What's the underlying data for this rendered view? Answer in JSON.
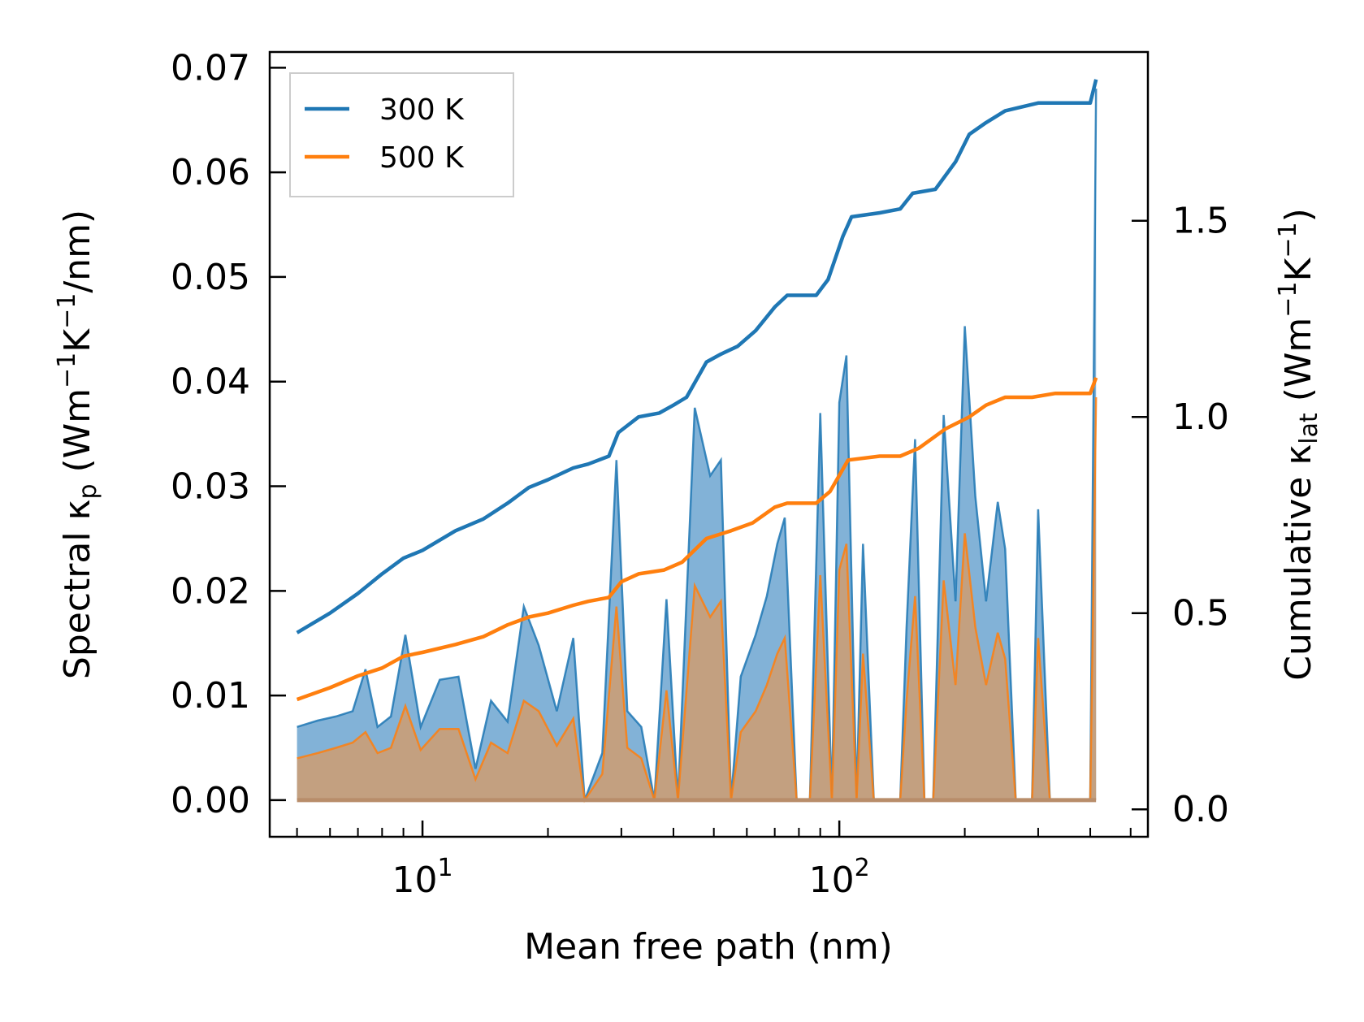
{
  "chart_data": {
    "type": "line",
    "xscale": "log",
    "xlabel": "Mean free path (nm)",
    "ylabel_left": "Spectral κp (Wm⁻¹K⁻¹/nm)",
    "ylabel_right": "Cumulative κlat (Wm⁻¹K⁻¹)",
    "ylabel_left_parts": {
      "prefix": "Spectral κ",
      "sub": "p",
      "mid": " (Wm",
      "sup1": "−1",
      "k": "K",
      "sup2": "−1",
      "suffix": "/nm)"
    },
    "ylabel_right_parts": {
      "prefix": "Cumulative κ",
      "sub": "lat",
      "mid": " (Wm",
      "sup1": "−1",
      "k": "K",
      "sup2": "−1",
      "suffix": ")"
    },
    "xlim": [
      4.3,
      550
    ],
    "ylim_left": [
      -0.0035,
      0.0715
    ],
    "ylim_right": [
      -0.07,
      1.93
    ],
    "xticks": [
      {
        "value": 10,
        "base": "10",
        "exp": "1"
      },
      {
        "value": 100,
        "base": "10",
        "exp": "2"
      }
    ],
    "yticks_left": [
      {
        "value": 0.0,
        "label": "0.00"
      },
      {
        "value": 0.01,
        "label": "0.01"
      },
      {
        "value": 0.02,
        "label": "0.02"
      },
      {
        "value": 0.03,
        "label": "0.03"
      },
      {
        "value": 0.04,
        "label": "0.04"
      },
      {
        "value": 0.05,
        "label": "0.05"
      },
      {
        "value": 0.06,
        "label": "0.06"
      },
      {
        "value": 0.07,
        "label": "0.07"
      }
    ],
    "yticks_right": [
      {
        "value": 0.0,
        "label": "0.0"
      },
      {
        "value": 0.5,
        "label": "0.5"
      },
      {
        "value": 1.0,
        "label": "1.0"
      },
      {
        "value": 1.5,
        "label": "1.5"
      }
    ],
    "legend": {
      "location": "upper-left",
      "entries": [
        {
          "label": "300 K",
          "color": "#1f77b4"
        },
        {
          "label": "500 K",
          "color": "#ff7f0e"
        }
      ]
    },
    "colors": {
      "t300": "#1f77b4",
      "t500": "#ff7f0e",
      "fill300": "#2e7ebc",
      "fill500": "#d89a63"
    },
    "spectral": {
      "300 K": [
        [
          5,
          0.007
        ],
        [
          5.6,
          0.0076
        ],
        [
          6.2,
          0.008
        ],
        [
          6.8,
          0.0085
        ],
        [
          7.3,
          0.0125
        ],
        [
          7.8,
          0.007
        ],
        [
          8.4,
          0.008
        ],
        [
          9.1,
          0.0158
        ],
        [
          9.9,
          0.007
        ],
        [
          11,
          0.0115
        ],
        [
          12.2,
          0.0118
        ],
        [
          13.4,
          0.003
        ],
        [
          14.6,
          0.0095
        ],
        [
          16,
          0.0075
        ],
        [
          17.5,
          0.0185
        ],
        [
          19,
          0.0148
        ],
        [
          21,
          0.0085
        ],
        [
          23,
          0.0155
        ],
        [
          24.5,
          0.0
        ],
        [
          27,
          0.0045
        ],
        [
          29.2,
          0.0325
        ],
        [
          31,
          0.0085
        ],
        [
          33.5,
          0.007
        ],
        [
          36,
          0.0
        ],
        [
          38.5,
          0.0192
        ],
        [
          41,
          0.0
        ],
        [
          45,
          0.0375
        ],
        [
          49,
          0.031
        ],
        [
          52,
          0.0325
        ],
        [
          55,
          0.0
        ],
        [
          58,
          0.0118
        ],
        [
          63,
          0.0158
        ],
        [
          67,
          0.0195
        ],
        [
          71,
          0.0245
        ],
        [
          74,
          0.027
        ],
        [
          79,
          0.0
        ],
        [
          85,
          0.0
        ],
        [
          90,
          0.037
        ],
        [
          96,
          0.0
        ],
        [
          100,
          0.038
        ],
        [
          104,
          0.0425
        ],
        [
          110,
          0.0
        ],
        [
          114,
          0.0245
        ],
        [
          121,
          0.0
        ],
        [
          140,
          0.0
        ],
        [
          145,
          0.0165
        ],
        [
          152,
          0.0345
        ],
        [
          160,
          0.0
        ],
        [
          168,
          0.0
        ],
        [
          178,
          0.0368
        ],
        [
          190,
          0.019
        ],
        [
          200,
          0.0453
        ],
        [
          212,
          0.029
        ],
        [
          225,
          0.019
        ],
        [
          240,
          0.0285
        ],
        [
          250,
          0.024
        ],
        [
          265,
          0.0
        ],
        [
          290,
          0.0
        ],
        [
          300,
          0.0278
        ],
        [
          320,
          0.0
        ],
        [
          400,
          0.0
        ],
        [
          413,
          0.068
        ]
      ],
      "500 K": [
        [
          5,
          0.004
        ],
        [
          5.6,
          0.0045
        ],
        [
          6.2,
          0.005
        ],
        [
          6.8,
          0.0055
        ],
        [
          7.3,
          0.0065
        ],
        [
          7.8,
          0.0045
        ],
        [
          8.4,
          0.005
        ],
        [
          9.1,
          0.009
        ],
        [
          9.9,
          0.0048
        ],
        [
          11,
          0.0068
        ],
        [
          12.2,
          0.0068
        ],
        [
          13.4,
          0.002
        ],
        [
          14.6,
          0.0055
        ],
        [
          16,
          0.0045
        ],
        [
          17.5,
          0.0095
        ],
        [
          19,
          0.0085
        ],
        [
          21,
          0.0052
        ],
        [
          23,
          0.0078
        ],
        [
          24.5,
          0.0
        ],
        [
          27,
          0.0025
        ],
        [
          29.2,
          0.0185
        ],
        [
          31,
          0.005
        ],
        [
          33.5,
          0.004
        ],
        [
          36,
          0.0
        ],
        [
          38.5,
          0.0105
        ],
        [
          41,
          0.0
        ],
        [
          45,
          0.0205
        ],
        [
          49,
          0.0175
        ],
        [
          52,
          0.019
        ],
        [
          55,
          0.0
        ],
        [
          58,
          0.0065
        ],
        [
          63,
          0.0085
        ],
        [
          67,
          0.011
        ],
        [
          71,
          0.014
        ],
        [
          74,
          0.0155
        ],
        [
          79,
          0.0
        ],
        [
          85,
          0.0
        ],
        [
          90,
          0.0215
        ],
        [
          96,
          0.0
        ],
        [
          100,
          0.022
        ],
        [
          104,
          0.0245
        ],
        [
          110,
          0.0
        ],
        [
          114,
          0.014
        ],
        [
          121,
          0.0
        ],
        [
          140,
          0.0
        ],
        [
          145,
          0.0095
        ],
        [
          152,
          0.0195
        ],
        [
          160,
          0.0
        ],
        [
          168,
          0.0
        ],
        [
          178,
          0.021
        ],
        [
          190,
          0.011
        ],
        [
          200,
          0.0255
        ],
        [
          212,
          0.0165
        ],
        [
          225,
          0.011
        ],
        [
          240,
          0.016
        ],
        [
          250,
          0.0135
        ],
        [
          265,
          0.0
        ],
        [
          290,
          0.0
        ],
        [
          300,
          0.0155
        ],
        [
          320,
          0.0
        ],
        [
          400,
          0.0
        ],
        [
          413,
          0.0385
        ]
      ]
    },
    "cumulative": {
      "300 K": [
        [
          5,
          0.45
        ],
        [
          6,
          0.5
        ],
        [
          7,
          0.55
        ],
        [
          8,
          0.6
        ],
        [
          9,
          0.64
        ],
        [
          10,
          0.66
        ],
        [
          12,
          0.71
        ],
        [
          14,
          0.74
        ],
        [
          16,
          0.78
        ],
        [
          18,
          0.82
        ],
        [
          20,
          0.84
        ],
        [
          23,
          0.87
        ],
        [
          25,
          0.88
        ],
        [
          28,
          0.9
        ],
        [
          29.5,
          0.96
        ],
        [
          33,
          1.0
        ],
        [
          37,
          1.01
        ],
        [
          40,
          1.03
        ],
        [
          43,
          1.05
        ],
        [
          48,
          1.14
        ],
        [
          52,
          1.16
        ],
        [
          57,
          1.18
        ],
        [
          63,
          1.22
        ],
        [
          70,
          1.28
        ],
        [
          75,
          1.31
        ],
        [
          88,
          1.31
        ],
        [
          94,
          1.35
        ],
        [
          102,
          1.46
        ],
        [
          107,
          1.51
        ],
        [
          125,
          1.52
        ],
        [
          140,
          1.53
        ],
        [
          150,
          1.57
        ],
        [
          170,
          1.58
        ],
        [
          190,
          1.65
        ],
        [
          205,
          1.72
        ],
        [
          225,
          1.75
        ],
        [
          250,
          1.78
        ],
        [
          300,
          1.8
        ],
        [
          340,
          1.8
        ],
        [
          400,
          1.8
        ],
        [
          413,
          1.86
        ]
      ],
      "500 K": [
        [
          5,
          0.28
        ],
        [
          6,
          0.31
        ],
        [
          7,
          0.34
        ],
        [
          8,
          0.36
        ],
        [
          9,
          0.39
        ],
        [
          10,
          0.4
        ],
        [
          12,
          0.42
        ],
        [
          14,
          0.44
        ],
        [
          16,
          0.47
        ],
        [
          18,
          0.49
        ],
        [
          20,
          0.5
        ],
        [
          23,
          0.52
        ],
        [
          25,
          0.53
        ],
        [
          28,
          0.54
        ],
        [
          30,
          0.58
        ],
        [
          33,
          0.6
        ],
        [
          38,
          0.61
        ],
        [
          42,
          0.63
        ],
        [
          48,
          0.69
        ],
        [
          55,
          0.71
        ],
        [
          62,
          0.73
        ],
        [
          70,
          0.77
        ],
        [
          75,
          0.78
        ],
        [
          88,
          0.78
        ],
        [
          95,
          0.81
        ],
        [
          105,
          0.89
        ],
        [
          125,
          0.9
        ],
        [
          140,
          0.9
        ],
        [
          155,
          0.92
        ],
        [
          180,
          0.97
        ],
        [
          205,
          1.0
        ],
        [
          225,
          1.03
        ],
        [
          250,
          1.05
        ],
        [
          290,
          1.05
        ],
        [
          330,
          1.06
        ],
        [
          400,
          1.06
        ],
        [
          413,
          1.1
        ]
      ]
    }
  }
}
